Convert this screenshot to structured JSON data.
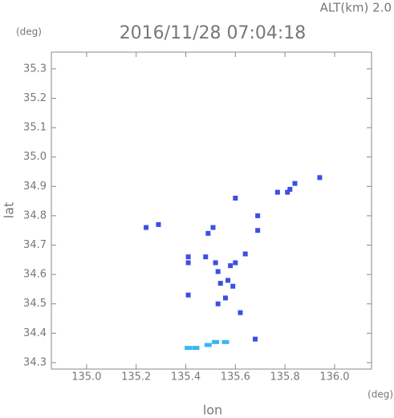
{
  "chart_data": {
    "type": "scatter",
    "title": "2016/11/28 07:04:18",
    "altitude_label": "ALT(km) 2.0",
    "y_unit": "(deg)",
    "x_unit": "(deg)",
    "xlabel": "lon",
    "ylabel": "lat",
    "xlim": [
      134.858,
      136.149
    ],
    "ylim": [
      34.278,
      35.357
    ],
    "xticks": [
      {
        "value": 135,
        "label": "135.0"
      },
      135.2,
      135.4,
      135.6,
      135.8,
      {
        "value": 136,
        "label": "136.0"
      }
    ],
    "yticks": [
      34.3,
      34.4,
      34.5,
      34.6,
      34.7,
      34.8,
      34.9,
      {
        "value": 35,
        "label": "35.0"
      },
      35.1,
      35.2,
      35.3
    ],
    "series": [
      {
        "color": "#3b4fe2",
        "x": [
          135.24,
          135.29,
          135.82,
          135.81,
          135.77,
          135.84,
          135.94,
          135.69,
          135.6,
          135.51,
          135.49,
          135.41,
          135.41,
          135.41,
          135.48,
          135.52,
          135.53,
          135.54,
          135.57,
          135.59,
          135.53,
          135.56,
          135.58,
          135.6,
          135.64,
          135.62,
          135.68,
          135.69
        ],
        "y": [
          34.76,
          34.77,
          34.89,
          34.88,
          34.88,
          34.91,
          34.93,
          34.8,
          34.86,
          34.76,
          34.74,
          34.66,
          34.64,
          34.53,
          34.66,
          34.64,
          34.61,
          34.57,
          34.58,
          34.56,
          34.5,
          34.52,
          34.63,
          34.64,
          34.67,
          34.47,
          34.38,
          34.75
        ]
      },
      {
        "color": "#3ab6f0",
        "x": [
          135.41,
          135.44,
          135.49,
          135.52,
          135.56
        ],
        "y": [
          34.35,
          34.35,
          34.36,
          34.37,
          34.37
        ]
      }
    ]
  }
}
